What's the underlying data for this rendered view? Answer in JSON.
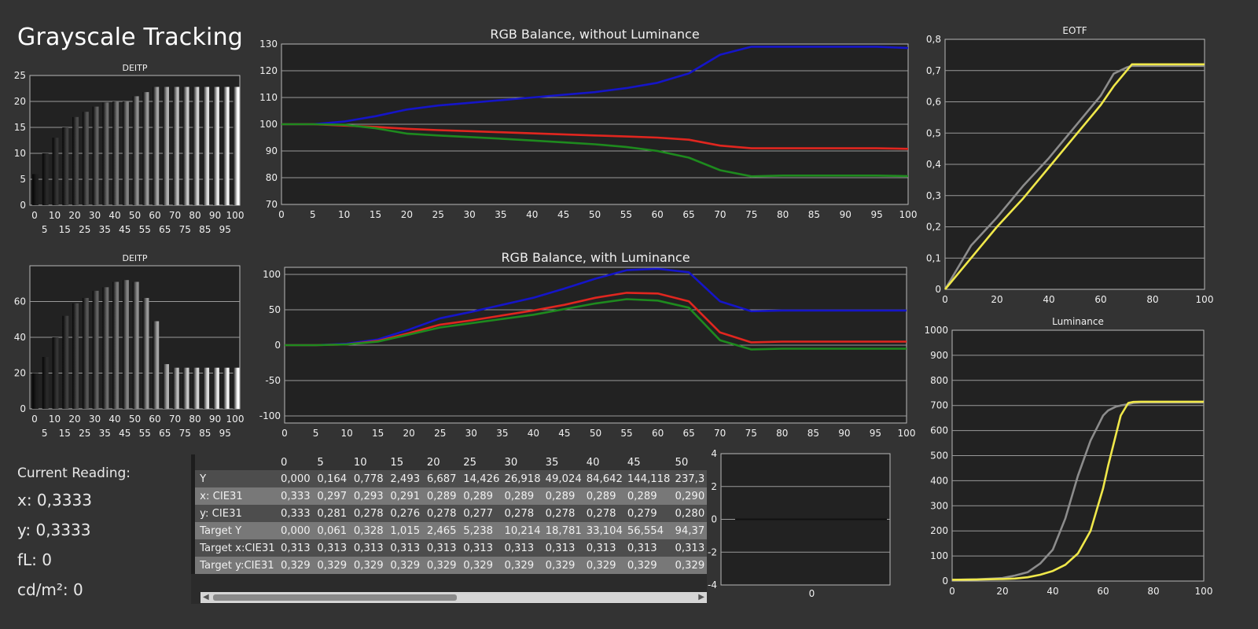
{
  "page_title": "Grayscale Tracking",
  "current_reading": {
    "label": "Current Reading:",
    "x": "x: 0,3333",
    "y": "y: 0,3333",
    "fl": "fL: 0",
    "cdm2": "cd/m²: 0"
  },
  "table": {
    "columns": [
      "0",
      "5",
      "10",
      "15",
      "20",
      "25",
      "30",
      "35",
      "40",
      "45",
      "50"
    ],
    "rows": [
      {
        "label": "Y",
        "values": [
          "0,000",
          "0,164",
          "0,778",
          "2,493",
          "6,687",
          "14,426",
          "26,918",
          "49,024",
          "84,642",
          "144,118",
          "237,3"
        ]
      },
      {
        "label": "x: CIE31",
        "values": [
          "0,333",
          "0,297",
          "0,293",
          "0,291",
          "0,289",
          "0,289",
          "0,289",
          "0,289",
          "0,289",
          "0,289",
          "0,290"
        ]
      },
      {
        "label": "y: CIE31",
        "values": [
          "0,333",
          "0,281",
          "0,278",
          "0,276",
          "0,278",
          "0,277",
          "0,278",
          "0,278",
          "0,278",
          "0,279",
          "0,280"
        ]
      },
      {
        "label": "Target Y",
        "values": [
          "0,000",
          "0,061",
          "0,328",
          "1,015",
          "2,465",
          "5,238",
          "10,214",
          "18,781",
          "33,104",
          "56,554",
          "94,37"
        ]
      },
      {
        "label": "Target x:CIE31",
        "values": [
          "0,313",
          "0,313",
          "0,313",
          "0,313",
          "0,313",
          "0,313",
          "0,313",
          "0,313",
          "0,313",
          "0,313",
          "0,313"
        ]
      },
      {
        "label": "Target y:CIE31",
        "values": [
          "0,329",
          "0,329",
          "0,329",
          "0,329",
          "0,329",
          "0,329",
          "0,329",
          "0,329",
          "0,329",
          "0,329",
          "0,329"
        ]
      }
    ]
  },
  "colors": {
    "red": "#e0261f",
    "green": "#1e8a1e",
    "blue": "#1515c8",
    "yellow": "#f0e84a",
    "gray": "#8c8c8c"
  },
  "chart_data": [
    {
      "id": "deitp1",
      "type": "bar",
      "title": "DEITP",
      "categories": [
        0,
        5,
        10,
        15,
        20,
        25,
        30,
        35,
        40,
        45,
        50,
        55,
        60,
        65,
        70,
        75,
        80,
        85,
        90,
        95,
        100
      ],
      "values": [
        6,
        10,
        13,
        15,
        17,
        18,
        19,
        19.8,
        20,
        20,
        21,
        21.8,
        22.8,
        22.8,
        22.8,
        22.8,
        22.8,
        22.8,
        22.8,
        22.8,
        22.8
      ],
      "ylim": [
        0,
        25
      ],
      "yticks": [
        0,
        5,
        10,
        15,
        20,
        25
      ],
      "xticks_top": [
        "0",
        "10",
        "20",
        "30",
        "40",
        "50",
        "60",
        "70",
        "80",
        "90",
        "100"
      ],
      "xticks_bottom": [
        "5",
        "15",
        "25",
        "35",
        "45",
        "55",
        "65",
        "75",
        "85",
        "95"
      ]
    },
    {
      "id": "deitp2",
      "type": "bar",
      "title": "DEITP",
      "categories": [
        0,
        5,
        10,
        15,
        20,
        25,
        30,
        35,
        40,
        45,
        50,
        55,
        60,
        65,
        70,
        75,
        80,
        85,
        90,
        95,
        100
      ],
      "values": [
        20,
        29,
        40,
        52,
        59,
        62,
        66,
        68,
        71,
        72,
        71,
        62,
        49,
        25,
        23,
        23,
        23,
        23,
        23,
        23,
        23
      ],
      "ylim": [
        0,
        80
      ],
      "yticks": [
        0,
        20,
        40,
        60
      ],
      "xticks_top": [
        "0",
        "10",
        "20",
        "30",
        "40",
        "50",
        "60",
        "70",
        "80",
        "90",
        "100"
      ],
      "xticks_bottom": [
        "5",
        "15",
        "25",
        "35",
        "45",
        "55",
        "65",
        "75",
        "85",
        "95"
      ]
    },
    {
      "id": "rgb1",
      "type": "line",
      "title": "RGB Balance, without Luminance",
      "x": [
        0,
        5,
        10,
        15,
        20,
        25,
        30,
        35,
        40,
        45,
        50,
        55,
        60,
        65,
        70,
        75,
        80,
        85,
        90,
        95,
        100
      ],
      "series": [
        {
          "color": "blue",
          "values": [
            100,
            100,
            101,
            103,
            105.5,
            107,
            108,
            109,
            110,
            111,
            112,
            113.5,
            115.5,
            119,
            126,
            129,
            129,
            129,
            129,
            129,
            128.5
          ]
        },
        {
          "color": "red",
          "values": [
            100,
            100,
            99.5,
            99,
            98.3,
            97.8,
            97.4,
            97,
            96.6,
            96.2,
            95.8,
            95.4,
            95,
            94.2,
            92,
            91,
            91,
            91,
            91,
            91,
            90.8
          ]
        },
        {
          "color": "green",
          "values": [
            100,
            100,
            99.8,
            98.5,
            96.5,
            95.8,
            95.2,
            94.6,
            93.9,
            93.2,
            92.5,
            91.5,
            90,
            87.5,
            82.8,
            80.5,
            80.8,
            80.8,
            80.8,
            80.8,
            80.6
          ]
        }
      ],
      "ylim": [
        70,
        130
      ],
      "yticks": [
        70,
        80,
        90,
        100,
        110,
        120,
        130
      ],
      "xticks": [
        "0",
        "5",
        "10",
        "15",
        "20",
        "25",
        "30",
        "35",
        "40",
        "45",
        "50",
        "55",
        "60",
        "65",
        "70",
        "75",
        "80",
        "85",
        "90",
        "95",
        "100"
      ]
    },
    {
      "id": "rgb2",
      "type": "line",
      "title": "RGB Balance, with Luminance",
      "x": [
        0,
        5,
        10,
        15,
        20,
        25,
        30,
        35,
        40,
        45,
        50,
        55,
        60,
        65,
        70,
        75,
        80,
        85,
        90,
        95,
        100
      ],
      "series": [
        {
          "color": "blue",
          "values": [
            0,
            0,
            2,
            8,
            22,
            38,
            47,
            57,
            67,
            80,
            94,
            106,
            108,
            103,
            62,
            48,
            49,
            49,
            49,
            49,
            49
          ]
        },
        {
          "color": "red",
          "values": [
            0,
            0,
            1,
            6,
            17,
            29,
            35,
            42,
            49,
            57,
            67,
            74,
            73,
            62,
            18,
            4,
            5,
            5,
            5,
            5,
            5
          ]
        },
        {
          "color": "green",
          "values": [
            0,
            0,
            1,
            5,
            15,
            25,
            31,
            37,
            43,
            51,
            59,
            65,
            63,
            53,
            7,
            -6,
            -5,
            -5,
            -5,
            -5,
            -5
          ]
        }
      ],
      "ylim": [
        -110,
        110
      ],
      "yticks": [
        -100,
        -50,
        0,
        50,
        100
      ],
      "xticks": [
        "0",
        "5",
        "10",
        "15",
        "20",
        "25",
        "30",
        "35",
        "40",
        "45",
        "50",
        "55",
        "60",
        "65",
        "70",
        "75",
        "80",
        "85",
        "90",
        "95",
        "100"
      ]
    },
    {
      "id": "eotf",
      "type": "line",
      "title": "EOTF",
      "x": [
        0,
        10,
        20,
        30,
        40,
        50,
        60,
        65,
        70,
        72,
        75,
        80,
        90,
        100
      ],
      "series": [
        {
          "color": "gray",
          "values": [
            0,
            0.14,
            0.23,
            0.33,
            0.42,
            0.52,
            0.62,
            0.69,
            0.71,
            0.715,
            0.715,
            0.715,
            0.715,
            0.715
          ]
        },
        {
          "color": "yellow",
          "values": [
            0,
            0.1,
            0.2,
            0.29,
            0.39,
            0.49,
            0.59,
            0.65,
            0.7,
            0.72,
            0.72,
            0.72,
            0.72,
            0.72
          ]
        }
      ],
      "ylim": [
        0,
        0.8
      ],
      "yticks": [
        "0",
        "0,1",
        "0,2",
        "0,3",
        "0,4",
        "0,5",
        "0,6",
        "0,7",
        "0,8"
      ],
      "xticks": [
        "0",
        "20",
        "40",
        "60",
        "80",
        "100"
      ]
    },
    {
      "id": "luminance",
      "type": "line",
      "title": "Luminance",
      "x": [
        0,
        10,
        20,
        25,
        30,
        35,
        40,
        45,
        50,
        55,
        60,
        62,
        65,
        67,
        70,
        72,
        75,
        80,
        90,
        100
      ],
      "series": [
        {
          "color": "gray",
          "values": [
            5,
            7,
            12,
            22,
            35,
            70,
            125,
            250,
            420,
            560,
            660,
            680,
            695,
            700,
            705,
            710,
            712,
            712,
            712,
            712
          ]
        },
        {
          "color": "yellow",
          "values": [
            5,
            6,
            8,
            10,
            15,
            25,
            40,
            65,
            110,
            200,
            370,
            460,
            580,
            660,
            710,
            714,
            715,
            715,
            715,
            715
          ]
        }
      ],
      "ylim": [
        0,
        1000
      ],
      "yticks": [
        0,
        100,
        200,
        300,
        400,
        500,
        600,
        700,
        800,
        900,
        1000
      ],
      "xticks": [
        "0",
        "20",
        "40",
        "60",
        "80",
        "100"
      ]
    },
    {
      "id": "small",
      "type": "line",
      "x": [
        0
      ],
      "series": [
        {
          "color": "gray",
          "values": [
            0
          ]
        }
      ],
      "ylim": [
        -4,
        4
      ],
      "yticks": [
        "-4",
        "-2",
        "0",
        "2",
        "4"
      ],
      "xticks": [
        "0"
      ]
    }
  ]
}
